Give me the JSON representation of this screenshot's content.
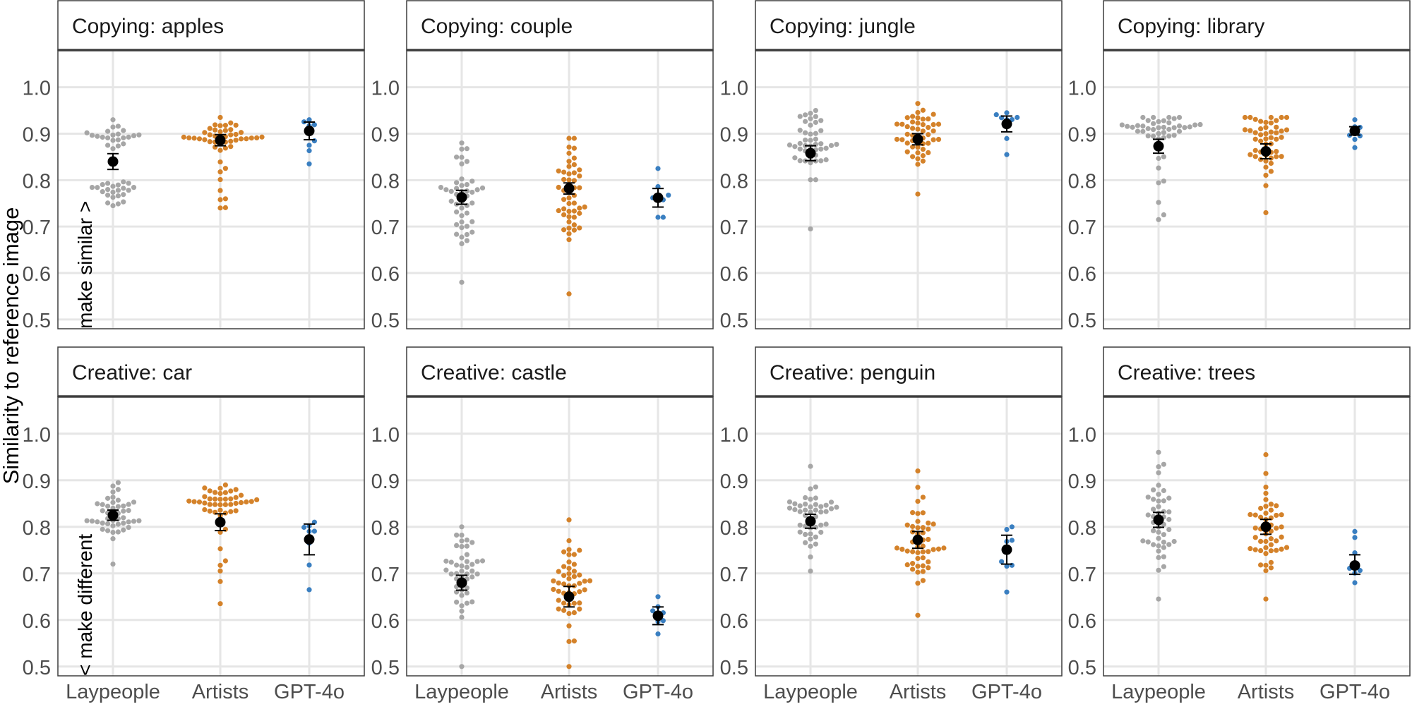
{
  "chart_data": {
    "type": "scatter",
    "subtype": "beeswarm-with-mean-and-error-bars",
    "ylabel": "Similarity to reference image",
    "y_annotation_low": "< make different",
    "y_annotation_high": "make similar >",
    "ylim": [
      0.48,
      1.08
    ],
    "yticks": [
      0.5,
      0.6,
      0.7,
      0.8,
      0.9,
      1.0
    ],
    "ytick_labels": [
      "0.5",
      "0.6",
      "0.7",
      "0.8",
      "0.9",
      "1.0"
    ],
    "categories": [
      "Laypeople",
      "Artists",
      "GPT-4o"
    ],
    "colors": {
      "Laypeople": "#a6a6a6",
      "Artists": "#d4822a",
      "GPT-4o": "#3a7fc1",
      "mean": "#000000",
      "grid": "#e6e6e6",
      "strip_line": "#3d3d3d",
      "border": "#3d3d3d",
      "tick_text": "#4d4d4d"
    },
    "panels": [
      {
        "title": "Copying: apples",
        "groups": [
          {
            "name": "Laypeople",
            "n": 45,
            "min": 0.745,
            "max": 0.93,
            "mean": 0.84,
            "ci_low": 0.823,
            "ci_high": 0.857,
            "dist": "bimodal",
            "modes": [
              0.775,
              0.895
            ]
          },
          {
            "name": "Artists",
            "n": 48,
            "min": 0.74,
            "max": 0.935,
            "mean": 0.886,
            "ci_low": 0.874,
            "ci_high": 0.898,
            "dist": "skew_high",
            "peak": 0.895
          },
          {
            "name": "GPT-4o",
            "n": 8,
            "min": 0.835,
            "max": 0.93,
            "mean": 0.906,
            "ci_low": 0.887,
            "ci_high": 0.925,
            "dist": "skew_high",
            "peak": 0.915
          }
        ]
      },
      {
        "title": "Copying: couple",
        "groups": [
          {
            "name": "Laypeople",
            "n": 45,
            "min": 0.58,
            "max": 0.88,
            "mean": 0.763,
            "ci_low": 0.748,
            "ci_high": 0.778,
            "dist": "normal",
            "peak": 0.77
          },
          {
            "name": "Artists",
            "n": 48,
            "min": 0.555,
            "max": 0.89,
            "mean": 0.782,
            "ci_low": 0.77,
            "ci_high": 0.794,
            "dist": "normal",
            "peak": 0.785
          },
          {
            "name": "GPT-4o",
            "n": 8,
            "min": 0.72,
            "max": 0.825,
            "mean": 0.762,
            "ci_low": 0.742,
            "ci_high": 0.782,
            "dist": "normal",
            "peak": 0.76
          }
        ]
      },
      {
        "title": "Copying: jungle",
        "groups": [
          {
            "name": "Laypeople",
            "n": 45,
            "min": 0.695,
            "max": 0.95,
            "mean": 0.858,
            "ci_low": 0.842,
            "ci_high": 0.874,
            "dist": "normal",
            "peak": 0.87
          },
          {
            "name": "Artists",
            "n": 48,
            "min": 0.77,
            "max": 0.965,
            "mean": 0.888,
            "ci_low": 0.876,
            "ci_high": 0.9,
            "dist": "normal",
            "peak": 0.9
          },
          {
            "name": "GPT-4o",
            "n": 8,
            "min": 0.855,
            "max": 0.945,
            "mean": 0.921,
            "ci_low": 0.904,
            "ci_high": 0.938,
            "dist": "skew_high",
            "peak": 0.93
          }
        ]
      },
      {
        "title": "Copying: library",
        "groups": [
          {
            "name": "Laypeople",
            "n": 45,
            "min": 0.715,
            "max": 0.935,
            "mean": 0.873,
            "ci_low": 0.858,
            "ci_high": 0.888,
            "dist": "skew_high",
            "peak": 0.91
          },
          {
            "name": "Artists",
            "n": 48,
            "min": 0.73,
            "max": 0.935,
            "mean": 0.862,
            "ci_low": 0.846,
            "ci_high": 0.878,
            "dist": "normal",
            "peak": 0.88
          },
          {
            "name": "GPT-4o",
            "n": 8,
            "min": 0.87,
            "max": 0.93,
            "mean": 0.906,
            "ci_low": 0.897,
            "ci_high": 0.915,
            "dist": "normal",
            "peak": 0.905
          }
        ]
      },
      {
        "title": "Creative: car",
        "groups": [
          {
            "name": "Laypeople",
            "n": 45,
            "min": 0.72,
            "max": 0.895,
            "mean": 0.825,
            "ci_low": 0.814,
            "ci_high": 0.836,
            "dist": "normal",
            "peak": 0.83
          },
          {
            "name": "Artists",
            "n": 48,
            "min": 0.635,
            "max": 0.89,
            "mean": 0.81,
            "ci_low": 0.792,
            "ci_high": 0.828,
            "dist": "skew_high",
            "peak": 0.85
          },
          {
            "name": "GPT-4o",
            "n": 8,
            "min": 0.665,
            "max": 0.81,
            "mean": 0.773,
            "ci_low": 0.74,
            "ci_high": 0.806,
            "dist": "skew_high",
            "peak": 0.8
          }
        ]
      },
      {
        "title": "Creative: castle",
        "groups": [
          {
            "name": "Laypeople",
            "n": 45,
            "min": 0.5,
            "max": 0.8,
            "mean": 0.68,
            "ci_low": 0.664,
            "ci_high": 0.696,
            "dist": "normal",
            "peak": 0.69
          },
          {
            "name": "Artists",
            "n": 48,
            "min": 0.5,
            "max": 0.815,
            "mean": 0.65,
            "ci_low": 0.628,
            "ci_high": 0.672,
            "dist": "normal",
            "peak": 0.66
          },
          {
            "name": "GPT-4o",
            "n": 8,
            "min": 0.57,
            "max": 0.65,
            "mean": 0.609,
            "ci_low": 0.59,
            "ci_high": 0.628,
            "dist": "normal",
            "peak": 0.61
          }
        ]
      },
      {
        "title": "Creative: penguin",
        "groups": [
          {
            "name": "Laypeople",
            "n": 45,
            "min": 0.705,
            "max": 0.93,
            "mean": 0.812,
            "ci_low": 0.797,
            "ci_high": 0.827,
            "dist": "normal",
            "peak": 0.82
          },
          {
            "name": "Artists",
            "n": 48,
            "min": 0.61,
            "max": 0.92,
            "mean": 0.772,
            "ci_low": 0.754,
            "ci_high": 0.79,
            "dist": "normal",
            "peak": 0.78
          },
          {
            "name": "GPT-4o",
            "n": 8,
            "min": 0.66,
            "max": 0.8,
            "mean": 0.751,
            "ci_low": 0.72,
            "ci_high": 0.782,
            "dist": "normal",
            "peak": 0.76
          }
        ]
      },
      {
        "title": "Creative: trees",
        "groups": [
          {
            "name": "Laypeople",
            "n": 45,
            "min": 0.645,
            "max": 0.96,
            "mean": 0.815,
            "ci_low": 0.799,
            "ci_high": 0.831,
            "dist": "normal",
            "peak": 0.82
          },
          {
            "name": "Artists",
            "n": 48,
            "min": 0.645,
            "max": 0.955,
            "mean": 0.8,
            "ci_low": 0.784,
            "ci_high": 0.816,
            "dist": "normal",
            "peak": 0.8
          },
          {
            "name": "GPT-4o",
            "n": 8,
            "min": 0.68,
            "max": 0.79,
            "mean": 0.717,
            "ci_low": 0.698,
            "ci_high": 0.74,
            "dist": "skew_low",
            "peak": 0.71
          }
        ]
      }
    ]
  }
}
